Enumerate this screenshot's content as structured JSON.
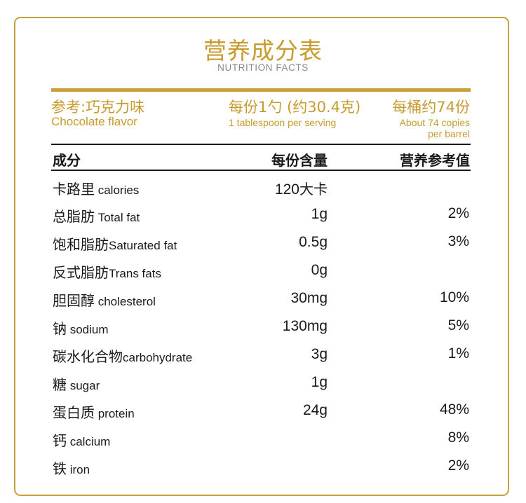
{
  "header": {
    "title": "营养成分表",
    "subtitle": "NUTRITION FACTS"
  },
  "info": {
    "flavor_cn": "参考:巧克力味",
    "flavor_en": "Chocolate flavor",
    "serving_cn": "每份1勺 (约30.4克)",
    "serving_en": "1 tablespoon per serving",
    "barrel_cn": "每桶约74份",
    "barrel_en_1": "About 74 copies",
    "barrel_en_2": "per barrel"
  },
  "columns": {
    "name": "成分",
    "amount": "每份含量",
    "nrv": "营养参考值"
  },
  "rows": [
    {
      "cn": "卡路里",
      "en": " calories",
      "amount": "120",
      "amount_unit": "大卡",
      "nrv": ""
    },
    {
      "cn": "总脂肪",
      "en": " Total fat",
      "amount": "1g",
      "amount_unit": "",
      "nrv": "2%"
    },
    {
      "cn": "饱和脂肪",
      "en": "Saturated fat",
      "amount": "0.5g",
      "amount_unit": "",
      "nrv": "3%"
    },
    {
      "cn": "反式脂肪",
      "en": "Trans fats",
      "amount": "0g",
      "amount_unit": "",
      "nrv": ""
    },
    {
      "cn": "胆固醇",
      "en": " cholesterol",
      "amount": "30mg",
      "amount_unit": "",
      "nrv": "10%"
    },
    {
      "cn": "钠",
      "en": " sodium",
      "amount": "130mg",
      "amount_unit": "",
      "nrv": "5%"
    },
    {
      "cn": "碳水化合物",
      "en": "carbohydrate",
      "amount": "3g",
      "amount_unit": "",
      "nrv": "1%"
    },
    {
      "cn": "糖",
      "en": " sugar",
      "amount": "1g",
      "amount_unit": "",
      "nrv": ""
    },
    {
      "cn": "蛋白质",
      "en": " protein",
      "amount": "24g",
      "amount_unit": "",
      "nrv": "48%"
    },
    {
      "cn": "钙",
      "en": " calcium",
      "amount": "",
      "amount_unit": "",
      "nrv": "8%"
    },
    {
      "cn": "铁",
      "en": " iron",
      "amount": "",
      "amount_unit": "",
      "nrv": "2%"
    }
  ],
  "colors": {
    "gold": "#c9a13a",
    "text": "#1a1a1a",
    "subtitle_gray": "#8a8a8a"
  }
}
